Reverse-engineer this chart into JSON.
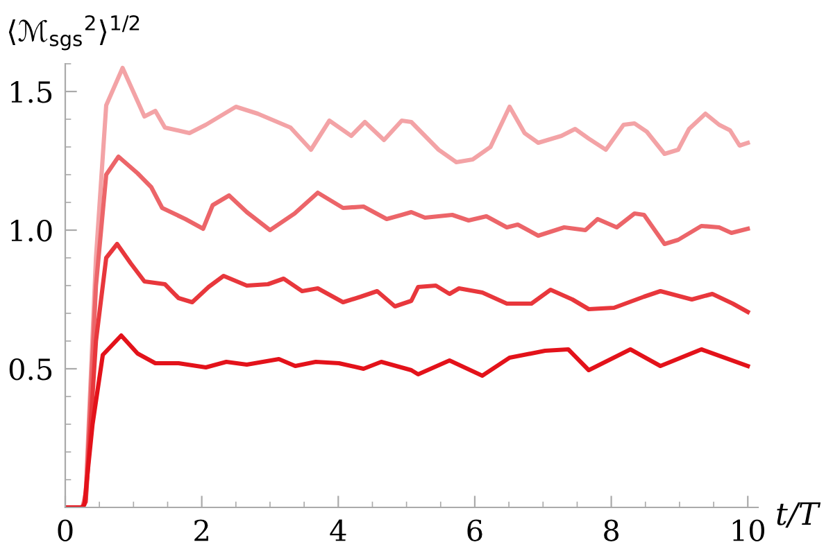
{
  "chart_data": {
    "type": "line",
    "xlabel": "t/T",
    "ylabel": "⟨ℳ$_{sgs}$$^{2}$⟩$^{1/2}$",
    "xlim": [
      0,
      10.15
    ],
    "ylim": [
      0,
      1.6
    ],
    "xticks": [
      0,
      {
        "value": 0.5,
        "label": null
      },
      {
        "value": 1,
        "label": null
      },
      {
        "value": 1.5,
        "label": null
      },
      2,
      {
        "value": 2.5,
        "label": null
      },
      {
        "value": 3,
        "label": null
      },
      {
        "value": 3.5,
        "label": null
      },
      4,
      {
        "value": 4.5,
        "label": null
      },
      {
        "value": 5,
        "label": null
      },
      {
        "value": 5.5,
        "label": null
      },
      6,
      {
        "value": 6.5,
        "label": null
      },
      {
        "value": 7,
        "label": null
      },
      {
        "value": 7.5,
        "label": null
      },
      8,
      {
        "value": 8.5,
        "label": null
      },
      {
        "value": 9,
        "label": null
      },
      {
        "value": 9.5,
        "label": null
      },
      10
    ],
    "yticks": [
      {
        "value": 0.1,
        "label": null
      },
      {
        "value": 0.2,
        "label": null
      },
      {
        "value": 0.3,
        "label": null
      },
      {
        "value": 0.4,
        "label": null
      },
      0.5,
      {
        "value": 0.6,
        "label": null
      },
      {
        "value": 0.7,
        "label": null
      },
      {
        "value": 0.8,
        "label": null
      },
      {
        "value": 0.9,
        "label": null
      },
      {
        "value": 1.0,
        "label": "1.0"
      },
      {
        "value": 1.1,
        "label": null
      },
      {
        "value": 1.2,
        "label": null
      },
      {
        "value": 1.3,
        "label": null
      },
      {
        "value": 1.4,
        "label": null
      },
      1.5,
      {
        "value": 1.6,
        "label": null
      }
    ],
    "grid": false,
    "legend": false,
    "marker": "none",
    "line_style": "solid",
    "series": [
      {
        "color": "#f3a3a6",
        "x": [
          0,
          0.25,
          0.3,
          0.45,
          0.6,
          0.84,
          1.16,
          1.32,
          1.46,
          1.82,
          2.06,
          2.5,
          2.82,
          3.3,
          3.6,
          3.87,
          4.19,
          4.39,
          4.67,
          4.93,
          5.07,
          5.47,
          5.73,
          5.97,
          6.23,
          6.51,
          6.73,
          6.93,
          7.27,
          7.47,
          7.67,
          7.92,
          8.18,
          8.34,
          8.52,
          8.78,
          8.98,
          9.14,
          9.38,
          9.58,
          9.74,
          9.88,
          10
        ],
        "values": [
          0,
          0,
          0.05,
          0.9,
          1.45,
          1.585,
          1.41,
          1.43,
          1.37,
          1.35,
          1.38,
          1.445,
          1.42,
          1.37,
          1.29,
          1.395,
          1.34,
          1.39,
          1.325,
          1.395,
          1.39,
          1.29,
          1.245,
          1.255,
          1.3,
          1.445,
          1.35,
          1.315,
          1.34,
          1.365,
          1.33,
          1.29,
          1.38,
          1.385,
          1.355,
          1.275,
          1.29,
          1.365,
          1.42,
          1.38,
          1.36,
          1.305,
          1.315
        ]
      },
      {
        "color": "#ec6569",
        "x": [
          0,
          0.25,
          0.3,
          0.45,
          0.6,
          0.78,
          1.06,
          1.26,
          1.42,
          1.76,
          2.02,
          2.16,
          2.4,
          2.66,
          3.0,
          3.36,
          3.7,
          4.07,
          4.37,
          4.71,
          4.93,
          5.07,
          5.27,
          5.67,
          5.91,
          6.17,
          6.47,
          6.63,
          6.93,
          7.31,
          7.62,
          7.8,
          8.08,
          8.34,
          8.48,
          8.78,
          8.98,
          9.32,
          9.58,
          9.76,
          10
        ],
        "values": [
          0,
          0,
          0.03,
          0.8,
          1.2,
          1.265,
          1.205,
          1.155,
          1.08,
          1.04,
          1.005,
          1.09,
          1.125,
          1.065,
          1.0,
          1.06,
          1.135,
          1.08,
          1.085,
          1.04,
          1.055,
          1.065,
          1.045,
          1.055,
          1.035,
          1.05,
          1.01,
          1.02,
          0.98,
          1.01,
          1.0,
          1.04,
          1.01,
          1.06,
          1.055,
          0.95,
          0.965,
          1.015,
          1.01,
          0.99,
          1.005
        ]
      },
      {
        "color": "#e8373c",
        "x": [
          0,
          0.25,
          0.3,
          0.45,
          0.6,
          0.76,
          0.96,
          1.16,
          1.46,
          1.66,
          1.86,
          2.1,
          2.32,
          2.66,
          2.97,
          3.2,
          3.47,
          3.7,
          4.07,
          4.33,
          4.57,
          4.83,
          5.07,
          5.17,
          5.43,
          5.63,
          5.77,
          6.11,
          6.47,
          6.83,
          7.11,
          7.43,
          7.67,
          8.04,
          8.48,
          8.72,
          9.18,
          9.48,
          9.78,
          10
        ],
        "values": [
          0,
          0,
          0.02,
          0.6,
          0.9,
          0.95,
          0.88,
          0.815,
          0.805,
          0.755,
          0.74,
          0.795,
          0.835,
          0.8,
          0.805,
          0.825,
          0.78,
          0.79,
          0.74,
          0.76,
          0.78,
          0.725,
          0.745,
          0.795,
          0.8,
          0.77,
          0.79,
          0.775,
          0.735,
          0.735,
          0.785,
          0.75,
          0.715,
          0.72,
          0.76,
          0.78,
          0.75,
          0.77,
          0.735,
          0.705
        ]
      },
      {
        "color": "#e3121a",
        "x": [
          0,
          0.25,
          0.28,
          0.4,
          0.55,
          0.82,
          1.06,
          1.32,
          1.66,
          2.06,
          2.36,
          2.66,
          3.13,
          3.37,
          3.67,
          4.01,
          4.37,
          4.63,
          5.07,
          5.17,
          5.63,
          6.11,
          6.51,
          7.03,
          7.37,
          7.67,
          8.28,
          8.72,
          9.32,
          10
        ],
        "values": [
          0,
          0,
          0.01,
          0.3,
          0.55,
          0.62,
          0.555,
          0.52,
          0.52,
          0.505,
          0.525,
          0.515,
          0.535,
          0.51,
          0.525,
          0.52,
          0.5,
          0.525,
          0.495,
          0.48,
          0.53,
          0.475,
          0.54,
          0.565,
          0.57,
          0.495,
          0.57,
          0.51,
          0.57,
          0.51
        ]
      }
    ]
  }
}
